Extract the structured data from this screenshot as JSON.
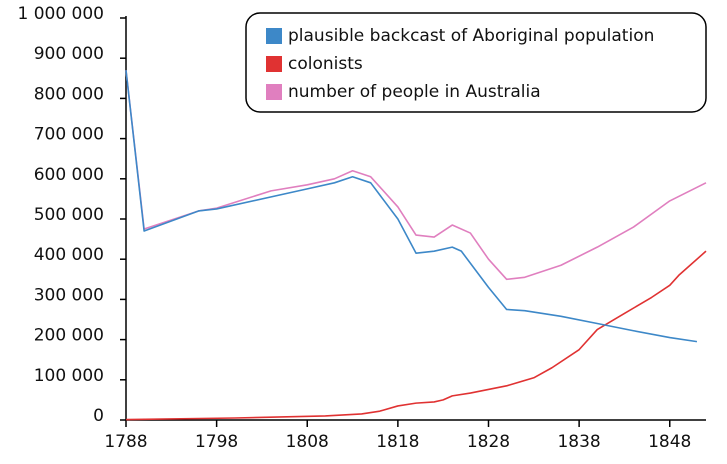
{
  "chart_data": {
    "type": "line",
    "series": [
      {
        "name": "plausible backcast of Aboriginal population",
        "color": "#3d88c8",
        "x": [
          1788,
          1790,
          1796,
          1798,
          1808,
          1811,
          1813,
          1815,
          1818,
          1820,
          1822,
          1824,
          1825,
          1828,
          1830,
          1832,
          1836,
          1840,
          1844,
          1848,
          1851
        ],
        "values": [
          870000,
          470000,
          520000,
          525000,
          575000,
          590000,
          605000,
          590000,
          500000,
          415000,
          420000,
          430000,
          420000,
          330000,
          275000,
          272000,
          258000,
          240000,
          222000,
          205000,
          195000
        ]
      },
      {
        "name": "colonists",
        "color": "#e03232",
        "x": [
          1788,
          1800,
          1810,
          1814,
          1816,
          1818,
          1820,
          1822,
          1823,
          1824,
          1826,
          1830,
          1833,
          1835,
          1838,
          1840,
          1843,
          1846,
          1848,
          1849,
          1852
        ],
        "values": [
          1000,
          5000,
          10000,
          15000,
          22000,
          35000,
          42000,
          45000,
          50000,
          60000,
          67000,
          85000,
          105000,
          130000,
          175000,
          225000,
          265000,
          305000,
          335000,
          360000,
          420000
        ]
      },
      {
        "name": "number of people in Australia",
        "color": "#e07fbf",
        "x": [
          1788,
          1790,
          1796,
          1798,
          1804,
          1808,
          1811,
          1813,
          1815,
          1818,
          1820,
          1822,
          1824,
          1826,
          1828,
          1830,
          1832,
          1836,
          1840,
          1844,
          1848,
          1852
        ],
        "values": [
          870000,
          475000,
          520000,
          527000,
          570000,
          585000,
          600000,
          620000,
          605000,
          530000,
          460000,
          455000,
          485000,
          465000,
          400000,
          350000,
          355000,
          385000,
          430000,
          480000,
          545000,
          590000
        ]
      }
    ],
    "xlim": [
      1788,
      1852
    ],
    "xticks": [
      1788,
      1798,
      1808,
      1818,
      1828,
      1838,
      1848
    ],
    "ylim": [
      0,
      1000000
    ],
    "yticks": [
      0,
      {
        "value": 100000,
        "label": "100 000"
      },
      {
        "value": 200000,
        "label": "200 000"
      },
      {
        "value": 300000,
        "label": "300 000"
      },
      {
        "value": 400000,
        "label": "400 000"
      },
      {
        "value": 500000,
        "label": "500 000"
      },
      {
        "value": 600000,
        "label": "600 000"
      },
      {
        "value": 700000,
        "label": "700 000"
      },
      {
        "value": 800000,
        "label": "800 000"
      },
      {
        "value": 900000,
        "label": "900 000"
      },
      {
        "value": 1000000,
        "label": "1 000 000"
      }
    ],
    "legend": "top-right"
  }
}
